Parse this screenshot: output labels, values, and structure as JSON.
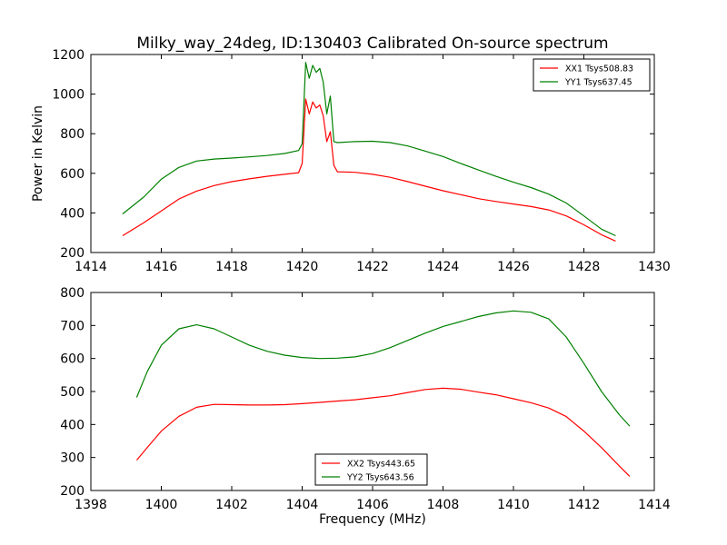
{
  "chart_data": [
    {
      "type": "line",
      "title": "Milky_way_24deg, ID:130403 Calibrated On-source spectrum",
      "xlabel": "",
      "ylabel": "Power in Kelvin",
      "xlim": [
        1414,
        1430
      ],
      "ylim": [
        200,
        1200
      ],
      "xticks": [
        1414,
        1416,
        1418,
        1420,
        1422,
        1424,
        1426,
        1428,
        1430
      ],
      "yticks": [
        200,
        400,
        600,
        800,
        1000,
        1200
      ],
      "legend_position": "top-right",
      "series": [
        {
          "name": "XX1 Tsys508.83",
          "color": "#ff0000",
          "x": [
            1414.9,
            1415.5,
            1416.0,
            1416.5,
            1417.0,
            1417.5,
            1418.0,
            1418.5,
            1419.0,
            1419.5,
            1419.9,
            1420.0,
            1420.1,
            1420.2,
            1420.3,
            1420.4,
            1420.5,
            1420.6,
            1420.7,
            1420.8,
            1420.9,
            1421.0,
            1421.5,
            1422.0,
            1422.5,
            1423.0,
            1423.5,
            1424.0,
            1424.5,
            1425.0,
            1425.5,
            1426.0,
            1426.5,
            1427.0,
            1427.5,
            1428.0,
            1428.5,
            1428.9
          ],
          "y": [
            285,
            350,
            410,
            470,
            510,
            538,
            558,
            572,
            585,
            595,
            603,
            650,
            975,
            900,
            960,
            930,
            945,
            890,
            760,
            810,
            640,
            608,
            605,
            595,
            580,
            558,
            535,
            512,
            492,
            472,
            458,
            445,
            432,
            415,
            385,
            340,
            290,
            258
          ]
        },
        {
          "name": "YY1 Tsys637.45",
          "color": "#008000",
          "x": [
            1414.9,
            1415.5,
            1416.0,
            1416.5,
            1417.0,
            1417.5,
            1418.0,
            1418.5,
            1419.0,
            1419.5,
            1419.9,
            1420.0,
            1420.1,
            1420.2,
            1420.3,
            1420.4,
            1420.5,
            1420.6,
            1420.7,
            1420.8,
            1420.9,
            1421.0,
            1421.5,
            1422.0,
            1422.5,
            1423.0,
            1423.5,
            1424.0,
            1424.5,
            1425.0,
            1425.5,
            1426.0,
            1426.5,
            1427.0,
            1427.5,
            1428.0,
            1428.5,
            1428.9
          ],
          "y": [
            395,
            480,
            570,
            630,
            662,
            672,
            677,
            683,
            690,
            700,
            715,
            750,
            1160,
            1080,
            1145,
            1110,
            1130,
            1060,
            900,
            990,
            760,
            755,
            760,
            762,
            755,
            738,
            712,
            685,
            650,
            617,
            585,
            555,
            528,
            495,
            450,
            385,
            318,
            285
          ]
        }
      ]
    },
    {
      "type": "line",
      "title": "",
      "xlabel": "Frequency (MHz)",
      "ylabel": "",
      "xlim": [
        1398,
        1414
      ],
      "ylim": [
        200,
        800
      ],
      "xticks": [
        1398,
        1400,
        1402,
        1404,
        1406,
        1408,
        1410,
        1412,
        1414
      ],
      "yticks": [
        200,
        300,
        400,
        500,
        600,
        700,
        800
      ],
      "legend_position": "bottom-center",
      "series": [
        {
          "name": "XX2 Tsys443.65",
          "color": "#ff0000",
          "x": [
            1399.3,
            1399.6,
            1400.0,
            1400.5,
            1401.0,
            1401.5,
            1402.0,
            1402.5,
            1403.0,
            1403.5,
            1404.0,
            1404.5,
            1405.0,
            1405.5,
            1406.0,
            1406.5,
            1407.0,
            1407.5,
            1408.0,
            1408.5,
            1409.0,
            1409.5,
            1410.0,
            1410.5,
            1411.0,
            1411.5,
            1412.0,
            1412.5,
            1413.0,
            1413.3
          ],
          "y": [
            292,
            330,
            380,
            425,
            452,
            461,
            460,
            459,
            459,
            460,
            463,
            467,
            471,
            475,
            481,
            487,
            497,
            506,
            510,
            507,
            498,
            490,
            478,
            466,
            450,
            424,
            380,
            330,
            275,
            243
          ]
        },
        {
          "name": "YY2 Tsys643.56",
          "color": "#008000",
          "x": [
            1399.3,
            1399.6,
            1400.0,
            1400.5,
            1401.0,
            1401.5,
            1402.0,
            1402.5,
            1403.0,
            1403.5,
            1404.0,
            1404.5,
            1405.0,
            1405.5,
            1406.0,
            1406.5,
            1407.0,
            1407.5,
            1408.0,
            1408.5,
            1409.0,
            1409.5,
            1410.0,
            1410.5,
            1411.0,
            1411.5,
            1412.0,
            1412.5,
            1413.0,
            1413.3
          ],
          "y": [
            482,
            560,
            640,
            690,
            702,
            690,
            665,
            640,
            622,
            610,
            603,
            600,
            601,
            605,
            615,
            633,
            655,
            677,
            697,
            712,
            727,
            738,
            744,
            740,
            720,
            665,
            585,
            500,
            430,
            395
          ]
        }
      ]
    }
  ]
}
